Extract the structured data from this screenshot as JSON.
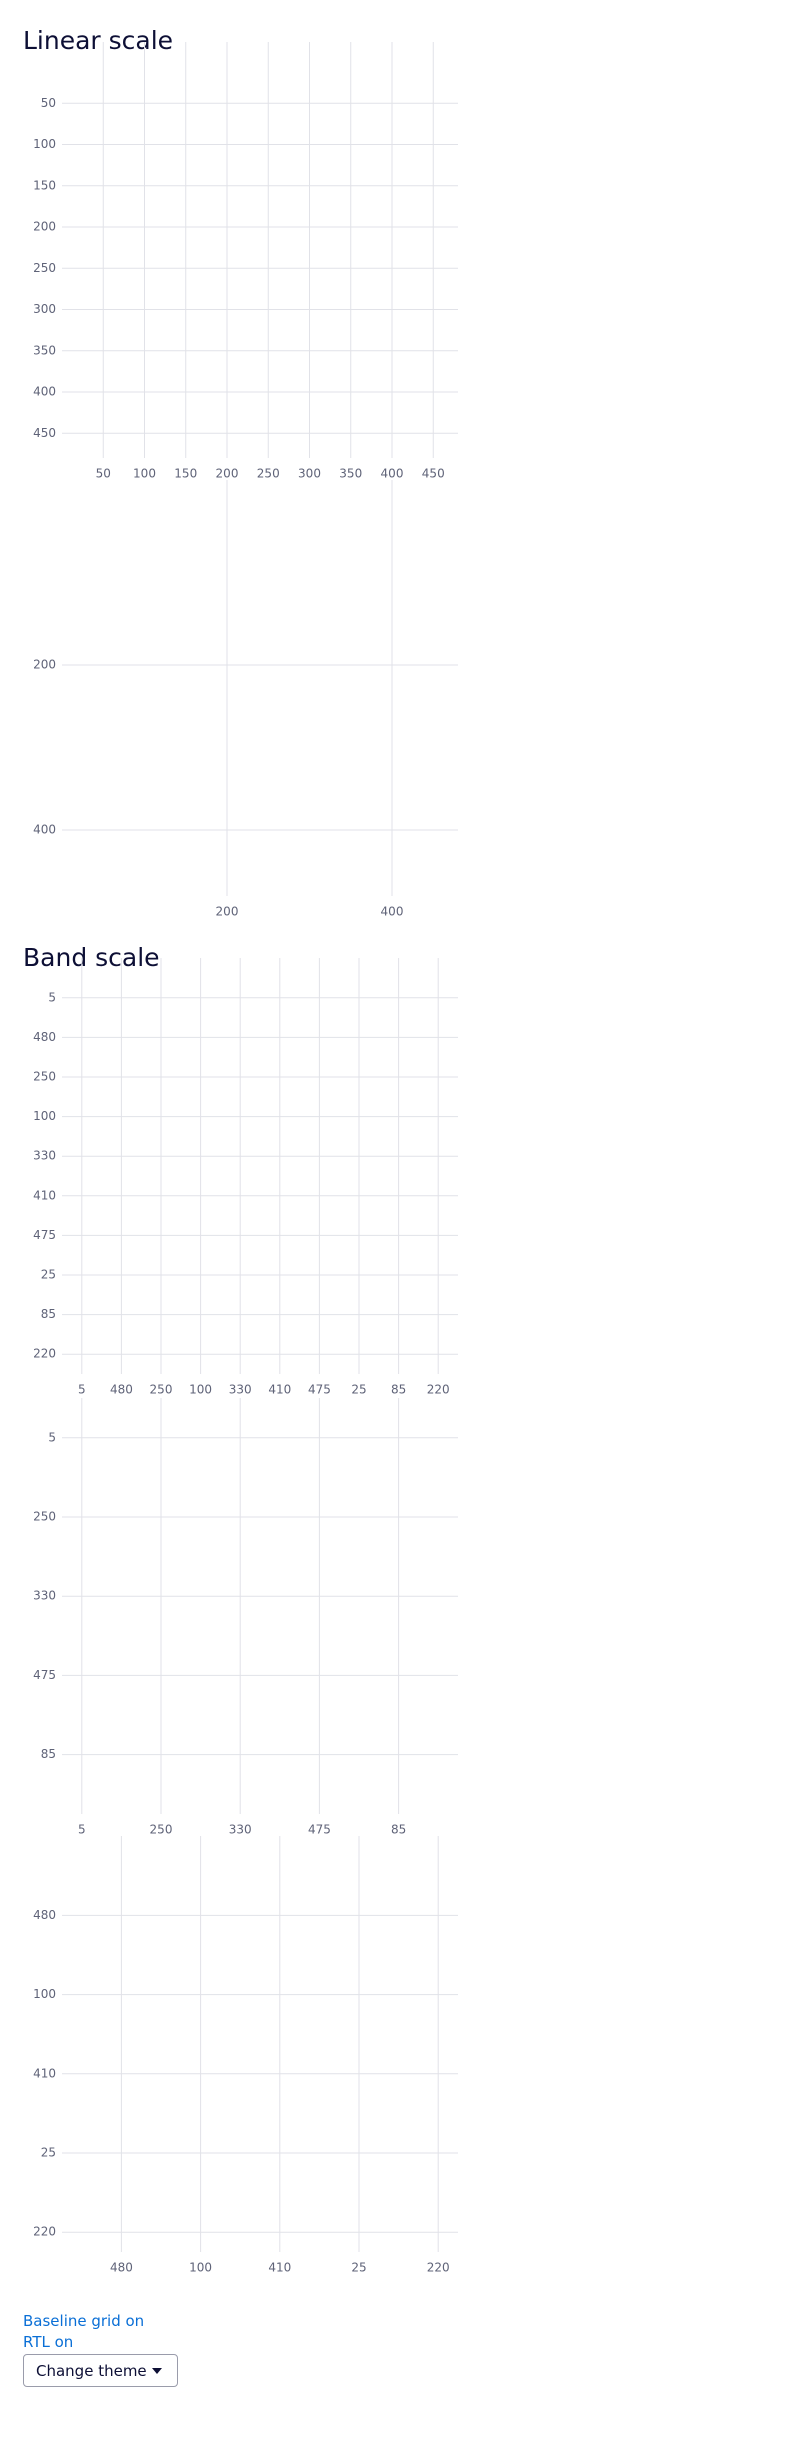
{
  "headings": [
    "Linear scale",
    "Band scale"
  ],
  "chart_data": [
    {
      "type": "grid",
      "scale": "linear",
      "xlim": [
        0,
        480
      ],
      "ylim": [
        0,
        480
      ],
      "y_reversed": true,
      "grid": true,
      "xticks": [
        50,
        100,
        150,
        200,
        250,
        300,
        350,
        400,
        450
      ],
      "yticks": [
        50,
        100,
        150,
        200,
        250,
        300,
        350,
        400,
        450
      ]
    },
    {
      "type": "grid",
      "scale": "linear",
      "xlim": [
        0,
        480
      ],
      "ylim": [
        0,
        480
      ],
      "y_reversed": true,
      "grid": true,
      "xticks": [
        200,
        400
      ],
      "yticks": [
        200,
        400
      ]
    },
    {
      "type": "grid",
      "scale": "band",
      "grid": true,
      "categories": [
        "5",
        "480",
        "250",
        "100",
        "330",
        "410",
        "475",
        "25",
        "85",
        "220"
      ],
      "y_categories": [
        "5",
        "480",
        "250",
        "100",
        "330",
        "410",
        "475",
        "25",
        "85",
        "220"
      ]
    },
    {
      "type": "grid",
      "scale": "band",
      "grid": true,
      "categories": [
        "5",
        null,
        "250",
        null,
        "330",
        null,
        "475",
        null,
        "85",
        null
      ],
      "y_categories": [
        "5",
        null,
        "250",
        null,
        "330",
        null,
        "475",
        null,
        "85",
        null
      ]
    },
    {
      "type": "grid",
      "scale": "band",
      "grid": true,
      "categories": [
        null,
        "480",
        null,
        "100",
        null,
        "410",
        null,
        "25",
        null,
        "220"
      ],
      "y_categories": [
        null,
        "480",
        null,
        "100",
        null,
        "410",
        null,
        "25",
        null,
        "220"
      ]
    }
  ],
  "controls": {
    "baseline_grid": "Baseline grid on",
    "rtl": "RTL on",
    "theme_button": "Change theme"
  }
}
